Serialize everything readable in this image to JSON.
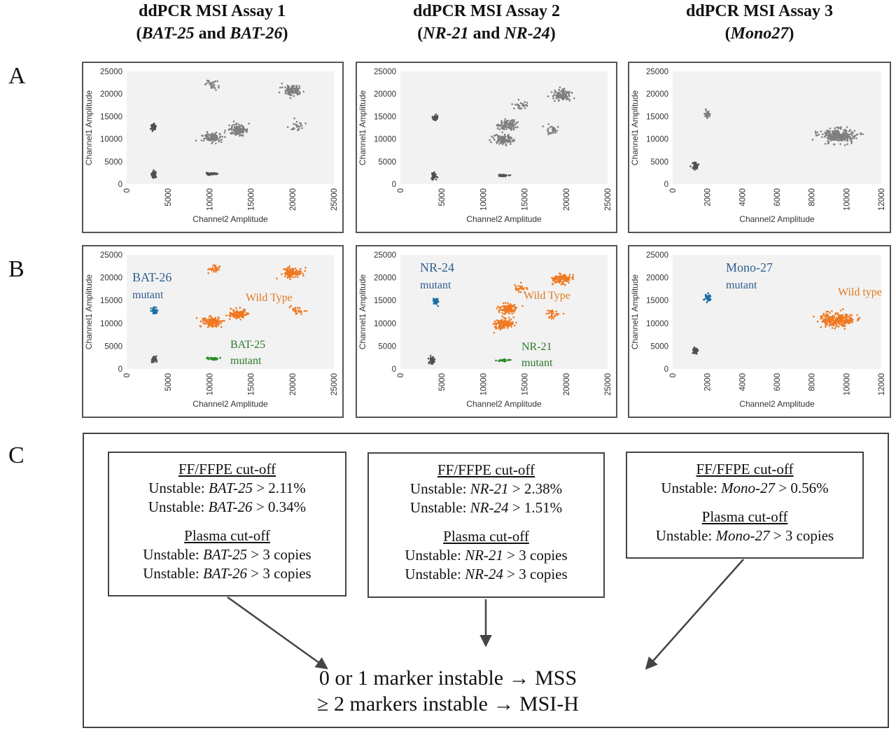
{
  "columns": [
    {
      "line1": "ddPCR MSI Assay 1",
      "open": "(",
      "m1": "BAT-25",
      "and": " and ",
      "m2": "BAT-26",
      "close": ")"
    },
    {
      "line1": "ddPCR MSI Assay 2",
      "open": "(",
      "m1": "NR-21",
      "and": " and ",
      "m2": "NR-24",
      "close": ")"
    },
    {
      "line1": "ddPCR MSI Assay 3",
      "open": "(",
      "m1": "Mono27",
      "and": "",
      "m2": "",
      "close": ")"
    }
  ],
  "row_labels": [
    "A",
    "B",
    "C"
  ],
  "axis_labels": {
    "x": "Channel2 Amplitude",
    "y": "Channel1 Amplitude"
  },
  "colors": {
    "grey": "#7f7f7f",
    "dark": "#505050",
    "orange": "#f07820",
    "blue": "#1f6fa8",
    "green": "#2a8a2a",
    "plot_bg": "#f2f2f2",
    "label_blue": "#2f5f8f",
    "label_orange": "#e07a20",
    "label_green": "#2a7a2a"
  },
  "chart_data": [
    {
      "type": "scatter",
      "row": "A",
      "assay": 1,
      "xlabel": "Channel2 Amplitude",
      "ylabel": "Channel1 Amplitude",
      "xlim": [
        0,
        25000
      ],
      "ylim": [
        0,
        25000
      ],
      "xticks": [
        "0",
        "5000",
        "10000",
        "15000",
        "20000",
        "25000"
      ],
      "yticks": [
        "0",
        "5000",
        "10000",
        "15000",
        "20000",
        "25000"
      ],
      "clusters": [
        {
          "x": 3300,
          "y": 2100,
          "color": "dark"
        },
        {
          "x": 3200,
          "y": 12700,
          "color": "dark"
        },
        {
          "x": 10300,
          "y": 2300,
          "color": "dark"
        },
        {
          "x": 10300,
          "y": 10300,
          "color": "grey"
        },
        {
          "x": 13500,
          "y": 12000,
          "color": "grey"
        },
        {
          "x": 20000,
          "y": 20900,
          "color": "grey"
        },
        {
          "x": 10500,
          "y": 22000,
          "color": "grey"
        },
        {
          "x": 20500,
          "y": 12700,
          "color": "grey"
        }
      ]
    },
    {
      "type": "scatter",
      "row": "A",
      "assay": 2,
      "xlabel": "Channel2 Amplitude",
      "ylabel": "Channel1 Amplitude",
      "xlim": [
        0,
        25000
      ],
      "ylim": [
        0,
        25000
      ],
      "xticks": [
        "0",
        "5000",
        "10000",
        "15000",
        "20000",
        "25000"
      ],
      "yticks": [
        "0",
        "5000",
        "10000",
        "15000",
        "20000",
        "25000"
      ],
      "clusters": [
        {
          "x": 4000,
          "y": 1800,
          "color": "dark"
        },
        {
          "x": 4200,
          "y": 14800,
          "color": "dark"
        },
        {
          "x": 12500,
          "y": 1900,
          "color": "dark"
        },
        {
          "x": 12400,
          "y": 9900,
          "color": "grey"
        },
        {
          "x": 12900,
          "y": 13200,
          "color": "grey"
        },
        {
          "x": 19500,
          "y": 19700,
          "color": "grey"
        },
        {
          "x": 14500,
          "y": 17500,
          "color": "grey"
        },
        {
          "x": 18500,
          "y": 12000,
          "color": "grey"
        }
      ]
    },
    {
      "type": "scatter",
      "row": "A",
      "assay": 3,
      "xlabel": "Channel2 Amplitude",
      "ylabel": "Channel1 Amplitude",
      "xlim": [
        0,
        12000
      ],
      "ylim": [
        0,
        25000
      ],
      "xticks": [
        "0",
        "2000",
        "4000",
        "6000",
        "8000",
        "10000",
        "12000"
      ],
      "yticks": [
        "0",
        "5000",
        "10000",
        "15000",
        "20000",
        "25000"
      ],
      "clusters": [
        {
          "x": 1300,
          "y": 4000,
          "color": "dark"
        },
        {
          "x": 2000,
          "y": 15500,
          "color": "grey"
        },
        {
          "x": 9500,
          "y": 10800,
          "color": "grey"
        }
      ]
    },
    {
      "type": "scatter",
      "row": "B",
      "assay": 1,
      "xlabel": "Channel2 Amplitude",
      "ylabel": "Channel1 Amplitude",
      "xlim": [
        0,
        25000
      ],
      "ylim": [
        0,
        25000
      ],
      "xticks": [
        "0",
        "5000",
        "10000",
        "15000",
        "20000",
        "25000"
      ],
      "yticks": [
        "0",
        "5000",
        "10000",
        "15000",
        "20000",
        "25000"
      ],
      "clusters": [
        {
          "x": 3300,
          "y": 2100,
          "color": "dark"
        },
        {
          "x": 3300,
          "y": 12700,
          "color": "blue"
        },
        {
          "x": 10300,
          "y": 2300,
          "color": "green"
        },
        {
          "x": 10300,
          "y": 10300,
          "color": "orange"
        },
        {
          "x": 13500,
          "y": 12000,
          "color": "orange"
        },
        {
          "x": 20000,
          "y": 21000,
          "color": "orange"
        },
        {
          "x": 10500,
          "y": 22000,
          "color": "orange"
        },
        {
          "x": 20500,
          "y": 12700,
          "color": "orange"
        }
      ],
      "annotations": [
        {
          "text": "BAT-26",
          "color": "label_blue"
        },
        {
          "text": "mutant",
          "color": "label_blue"
        },
        {
          "text": "Wild Type",
          "color": "label_orange"
        },
        {
          "text": "BAT-25",
          "color": "label_green"
        },
        {
          "text": "mutant",
          "color": "label_green"
        }
      ]
    },
    {
      "type": "scatter",
      "row": "B",
      "assay": 2,
      "xlabel": "Channel2 Amplitude",
      "ylabel": "Channel1 Amplitude",
      "xlim": [
        0,
        25000
      ],
      "ylim": [
        0,
        25000
      ],
      "xticks": [
        "0",
        "5000",
        "10000",
        "15000",
        "20000",
        "25000"
      ],
      "yticks": [
        "0",
        "5000",
        "10000",
        "15000",
        "20000",
        "25000"
      ],
      "clusters": [
        {
          "x": 3800,
          "y": 1800,
          "color": "dark"
        },
        {
          "x": 4300,
          "y": 14800,
          "color": "blue"
        },
        {
          "x": 12400,
          "y": 1900,
          "color": "green"
        },
        {
          "x": 12400,
          "y": 9900,
          "color": "orange"
        },
        {
          "x": 12900,
          "y": 13200,
          "color": "orange"
        },
        {
          "x": 19500,
          "y": 19700,
          "color": "orange"
        },
        {
          "x": 14500,
          "y": 17500,
          "color": "orange"
        },
        {
          "x": 18500,
          "y": 12000,
          "color": "orange"
        }
      ],
      "annotations": [
        {
          "text": "NR-24",
          "color": "label_blue"
        },
        {
          "text": "mutant",
          "color": "label_blue"
        },
        {
          "text": "Wild Type",
          "color": "label_orange"
        },
        {
          "text": "NR-21",
          "color": "label_green"
        },
        {
          "text": "mutant",
          "color": "label_green"
        }
      ]
    },
    {
      "type": "scatter",
      "row": "B",
      "assay": 3,
      "xlabel": "Channel2 Amplitude",
      "ylabel": "Channel1 Amplitude",
      "xlim": [
        0,
        12000
      ],
      "ylim": [
        0,
        25000
      ],
      "xticks": [
        "0",
        "2000",
        "4000",
        "6000",
        "8000",
        "10000",
        "12000"
      ],
      "yticks": [
        "0",
        "5000",
        "10000",
        "15000",
        "20000",
        "25000"
      ],
      "clusters": [
        {
          "x": 1300,
          "y": 4000,
          "color": "dark"
        },
        {
          "x": 2000,
          "y": 15500,
          "color": "blue"
        },
        {
          "x": 9500,
          "y": 10800,
          "color": "orange"
        }
      ],
      "annotations": [
        {
          "text": "Mono-27",
          "color": "label_blue"
        },
        {
          "text": "mutant",
          "color": "label_blue"
        },
        {
          "text": "Wild type",
          "color": "label_orange"
        }
      ]
    }
  ],
  "cutoffs": [
    {
      "ff_header": "FF/FFPE cut-off",
      "ff_lines": [
        {
          "prefix": "Unstable: ",
          "marker": "BAT-25",
          "suffix": " > 2.11%"
        },
        {
          "prefix": "Unstable: ",
          "marker": "BAT-26",
          "suffix": " > 0.34%"
        }
      ],
      "plasma_header": "Plasma cut-off",
      "plasma_lines": [
        {
          "prefix": "Unstable: ",
          "marker": "BAT-25",
          "suffix": " > 3 copies"
        },
        {
          "prefix": "Unstable: ",
          "marker": "BAT-26",
          "suffix": " > 3 copies"
        }
      ]
    },
    {
      "ff_header": "FF/FFPE cut-off",
      "ff_lines": [
        {
          "prefix": "Unstable: ",
          "marker": "NR-21",
          "suffix": " > 2.38%"
        },
        {
          "prefix": "Unstable: ",
          "marker": "NR-24",
          "suffix": " > 1.51%"
        }
      ],
      "plasma_header": "Plasma cut-off",
      "plasma_lines": [
        {
          "prefix": "Unstable: ",
          "marker": "NR-21",
          "suffix": " > 3 copies"
        },
        {
          "prefix": "Unstable: ",
          "marker": "NR-24",
          "suffix": " > 3 copies"
        }
      ]
    },
    {
      "ff_header": "FF/FFPE cut-off",
      "ff_lines": [
        {
          "prefix": "Unstable: ",
          "marker": "Mono-27",
          "suffix": " > 0.56%"
        }
      ],
      "plasma_header": "Plasma cut-off",
      "plasma_lines": [
        {
          "prefix": "Unstable: ",
          "marker": "Mono-27",
          "suffix": " > 3 copies"
        }
      ]
    }
  ],
  "rules": [
    "0 or 1 marker instable  →  MSS",
    "≥ 2 markers instable  →  MSI-H"
  ]
}
